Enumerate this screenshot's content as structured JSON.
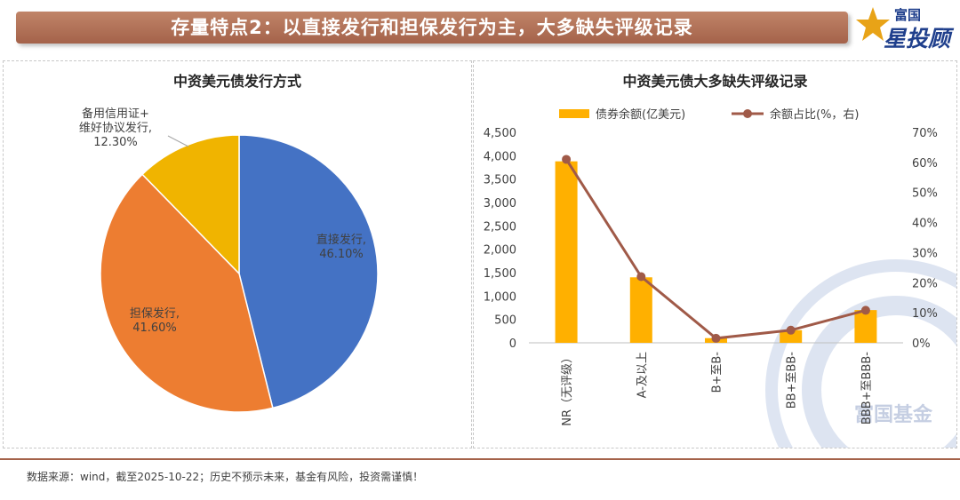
{
  "header": {
    "title": "存量特点2：以直接发行和担保发行为主，大多缺失评级记录",
    "logo_top": "富国",
    "logo_main": "星投顾",
    "watermark": "富国基金"
  },
  "footer": {
    "source": "数据来源：wind，截至2025-10-22；历史不预示未来，基金有风险，投资需谨慎！"
  },
  "colors": {
    "accent": "#a4624a",
    "pie_blue": "#4472c4",
    "pie_orange": "#ed7d31",
    "pie_yellow": "#f0b400",
    "bar": "#ffb000",
    "line": "#a05a48"
  },
  "chart_data": [
    {
      "type": "pie",
      "title": "中资美元债发行方式",
      "slices": [
        {
          "name": "直接发行",
          "value": 46.1,
          "label": "46.10%"
        },
        {
          "name": "担保发行",
          "value": 41.6,
          "label": "41.60%"
        },
        {
          "name": "备用信用证+维好协议发行",
          "label_lines": [
            "备用信用证+",
            "维好协议发行,"
          ],
          "value": 12.3,
          "label": "12.30%"
        }
      ]
    },
    {
      "type": "bar",
      "title": "中资美元债大多缺失评级记录",
      "categories": [
        "NR（无评级）",
        "A-及以上",
        "B+至B-",
        "BB+至BB-",
        "BBB+至BBB-"
      ],
      "series": [
        {
          "name": "债券余额(亿美元)",
          "type": "bar",
          "axis": "left",
          "values": [
            3880,
            1400,
            100,
            270,
            700
          ]
        },
        {
          "name": "余额占比(%，右)",
          "type": "line",
          "axis": "right",
          "values": [
            61,
            22,
            1.5,
            4.2,
            10.8
          ]
        }
      ],
      "ylim_left": [
        0,
        4500
      ],
      "yticks_left": [
        "0",
        "500",
        "1,000",
        "1,500",
        "2,000",
        "2,500",
        "3,000",
        "3,500",
        "4,000",
        "4,500"
      ],
      "ylim_right": [
        0,
        70
      ],
      "yticks_right": [
        "0%",
        "10%",
        "20%",
        "30%",
        "40%",
        "50%",
        "60%",
        "70%"
      ],
      "legend": "top",
      "grid": false
    }
  ]
}
